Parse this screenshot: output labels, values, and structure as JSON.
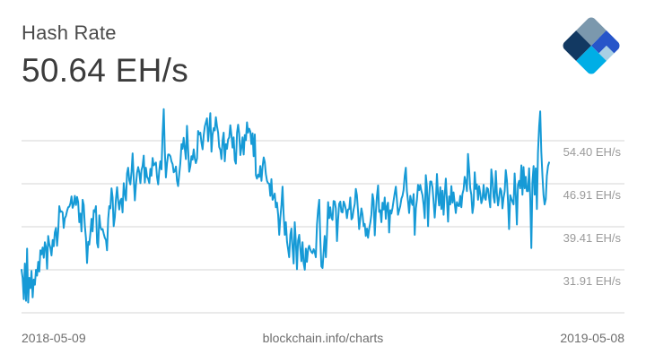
{
  "header": {
    "title": "Hash Rate",
    "current_value": "50.64 EH/s"
  },
  "logo": {
    "name": "blockchain-logo",
    "colors": [
      "#7b98ad",
      "#123962",
      "#2755c9",
      "#00aee6",
      "#a9cfe4"
    ]
  },
  "footer": {
    "start_date": "2018-05-09",
    "source": "blockchain.info/charts",
    "end_date": "2019-05-08"
  },
  "colors": {
    "line": "#169ad6",
    "grid": "#d6d6d6",
    "axis_text": "#9a9a9a"
  },
  "chart_data": {
    "type": "line",
    "title": "Hash Rate",
    "xlabel": "",
    "ylabel": "EH/s",
    "x_range": [
      "2018-05-09",
      "2019-05-08"
    ],
    "ytick_values": [
      54.4,
      46.91,
      39.41,
      31.91
    ],
    "ytick_labels": [
      "54.40 EH/s",
      "46.91 EH/s",
      "39.41 EH/s",
      "31.91 EH/s"
    ],
    "ylim": [
      24.41,
      54.4
    ],
    "grid": true,
    "legend": null,
    "series": [
      {
        "name": "Hash Rate",
        "note": "approximate daily values read from plot",
        "values": [
          31.9,
          30.5,
          26.8,
          33.0,
          26.5,
          35.6,
          26.2,
          30.5,
          28.7,
          31.7,
          27.1,
          30.2,
          29.3,
          31.9,
          30.9,
          33.3,
          31.6,
          35.3,
          34.6,
          35.8,
          34.0,
          36.7,
          35.9,
          32.1,
          37.8,
          36.4,
          35.7,
          34.4,
          37.1,
          36.0,
          38.4,
          39.2,
          36.1,
          38.7,
          43.0,
          42.0,
          42.1,
          41.9,
          39.2,
          40.9,
          41.3,
          42.2,
          42.8,
          42.9,
          43.5,
          44.7,
          42.7,
          43.3,
          44.8,
          43.2,
          44.6,
          43.7,
          40.2,
          41.7,
          38.6,
          44.1,
          43.2,
          39.5,
          37.4,
          33.1,
          36.8,
          36.3,
          38.2,
          40.8,
          38.6,
          42.3,
          42.0,
          43.0,
          36.6,
          35.8,
          41.4,
          39.4,
          38.9,
          39.0,
          38.2,
          37.5,
          37.1,
          35.3,
          40.8,
          43.0,
          42.6,
          46.1,
          44.5,
          39.5,
          41.1,
          44.2,
          46.3,
          44.0,
          42.4,
          44.0,
          44.3,
          41.9,
          47.0,
          45.3,
          44.0,
          48.7,
          49.7,
          47.5,
          46.8,
          49.0,
          52.2,
          48.0,
          44.0,
          46.7,
          48.8,
          49.8,
          48.9,
          47.0,
          49.3,
          50.0,
          51.8,
          47.1,
          49.7,
          48.1,
          47.8,
          47.0,
          49.5,
          48.3,
          51.4,
          50.1,
          50.3,
          50.6,
          48.1,
          46.8,
          49.2,
          50.8,
          49.4,
          55.5,
          59.9,
          52.6,
          48.0,
          50.5,
          52.0,
          52.0,
          51.7,
          50.8,
          50.3,
          48.9,
          49.1,
          49.9,
          47.4,
          46.5,
          48.6,
          50.5,
          53.8,
          53.0,
          54.9,
          53.0,
          51.2,
          57.0,
          52.8,
          49.0,
          50.0,
          51.7,
          51.1,
          52.9,
          51.3,
          50.5,
          51.3,
          56.1,
          55.5,
          55.8,
          54.1,
          52.9,
          55.3,
          56.9,
          57.6,
          58.3,
          54.3,
          56.5,
          59.2,
          52.5,
          55.4,
          56.6,
          56.2,
          58.5,
          56.9,
          55.8,
          53.3,
          52.8,
          51.2,
          54.5,
          55.8,
          50.8,
          53.8,
          53.0,
          54.6,
          55.0,
          57.1,
          55.3,
          53.2,
          55.0,
          51.0,
          50.4,
          55.8,
          57.2,
          55.6,
          51.9,
          53.2,
          55.0,
          52.0,
          55.4,
          54.5,
          57.6,
          55.8,
          56.5,
          56.0,
          53.8,
          55.7,
          51.7,
          55.5,
          48.4,
          47.8,
          48.5,
          48.1,
          50.0,
          47.4,
          49.8,
          51.5,
          50.7,
          48.6,
          47.4,
          47.0,
          46.9,
          44.8,
          47.7,
          44.1,
          44.6,
          45.2,
          42.8,
          43.6,
          41.5,
          38.0,
          40.9,
          43.2,
          46.4,
          41.6,
          38.0,
          40.2,
          36.8,
          35.5,
          34.1,
          38.0,
          39.1,
          35.8,
          33.0,
          40.2,
          36.6,
          32.0,
          37.0,
          38.0,
          35.6,
          33.4,
          36.7,
          33.1,
          31.9,
          35.6,
          33.3,
          35.5,
          36.1,
          35.4,
          35.0,
          34.8,
          35.5,
          35.0,
          34.1,
          39.8,
          42.3,
          44.1,
          37.2,
          32.5,
          32.2,
          35.0,
          37.8,
          34.1,
          38.0,
          43.7,
          40.9,
          42.8,
          41.0,
          40.6,
          43.9,
          43.8,
          42.6,
          36.9,
          40.6,
          43.4,
          43.8,
          42.0,
          41.9,
          43.8,
          43.3,
          42.4,
          40.9,
          42.4,
          42.5,
          44.5,
          40.7,
          41.0,
          42.4,
          43.4,
          46.0,
          44.9,
          42.0,
          39.0,
          40.9,
          42.6,
          41.6,
          39.5,
          39.9,
          37.8,
          39.1,
          37.5,
          39.1,
          40.1,
          41.5,
          45.1,
          43.9,
          37.9,
          42.0,
          44.7,
          46.6,
          42.0,
          42.3,
          40.2,
          43.6,
          42.4,
          44.5,
          40.8,
          43.0,
          43.6,
          38.4,
          42.3,
          41.7,
          42.7,
          44.0,
          45.2,
          46.4,
          44.0,
          41.5,
          42.3,
          43.0,
          44.3,
          44.8,
          45.8,
          48.3,
          49.7,
          45.6,
          43.8,
          41.8,
          44.8,
          43.8,
          43.2,
          45.1,
          38.0,
          42.6,
          44.1,
          46.7,
          45.8,
          46.7,
          45.7,
          44.9,
          43.3,
          40.9,
          48.4,
          46.4,
          39.5,
          44.8,
          47.3,
          47.3,
          46.3,
          43.7,
          41.0,
          43.6,
          48.6,
          45.0,
          43.1,
          46.3,
          42.5,
          45.7,
          41.5,
          44.9,
          47.8,
          44.2,
          40.3,
          44.7,
          43.3,
          46.5,
          43.6,
          45.4,
          43.5,
          41.8,
          43.7,
          43.1,
          43.0,
          44.8,
          42.8,
          45.1,
          45.9,
          48.1,
          47.2,
          45.6,
          52.1,
          49.3,
          46.1,
          45.0,
          41.8,
          43.2,
          48.9,
          46.0,
          46.8,
          44.1,
          46.5,
          45.2,
          43.5,
          44.2,
          46.7,
          44.5,
          44.1,
          46.2,
          46.0,
          44.3,
          42.8,
          49.4,
          47.7,
          44.6,
          43.6,
          49.1,
          45.3,
          43.1,
          44.5,
          46.1,
          45.6,
          42.6,
          44.4,
          45.6,
          49.3,
          47.5,
          43.8,
          39.0,
          44.9,
          44.3,
          43.8,
          43.3,
          48.7,
          44.8,
          39.8,
          46.7,
          47.4,
          46.1,
          50.1,
          45.0,
          49.8,
          46.1,
          48.1,
          45.6,
          45.6,
          49.6,
          44.3,
          35.7,
          47.1,
          50.0,
          45.0,
          49.6,
          42.5,
          52.3,
          56.9,
          59.5,
          52.5,
          48.2,
          44.9,
          43.3,
          44.2,
          48.3,
          50.0,
          50.6
        ]
      }
    ]
  }
}
